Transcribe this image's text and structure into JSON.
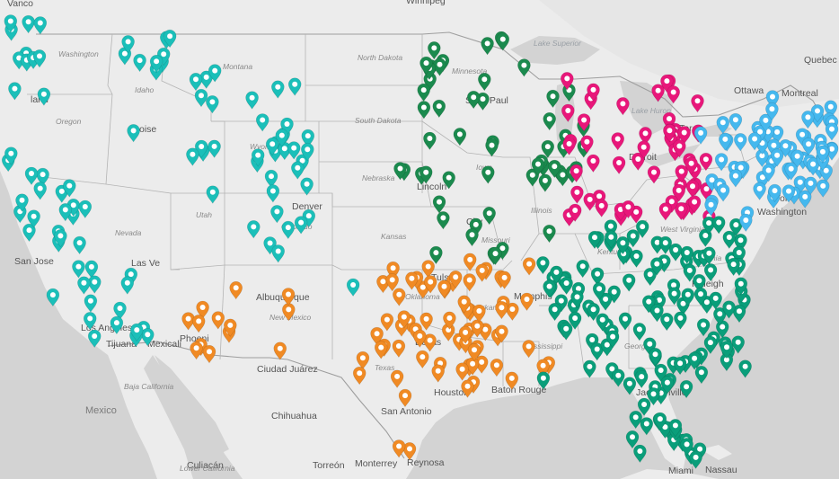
{
  "map": {
    "basemap": "light-gray",
    "colors": {
      "land": "#ececec",
      "water": "#d3d3d3",
      "lake": "#d3d3d3",
      "border": "#b4b4b4"
    },
    "labels": {
      "cities": [
        {
          "name": "Vanco",
          "key": "vancouver"
        },
        {
          "name": "Winnipeg",
          "key": "winnipeg"
        },
        {
          "name": "Quebec",
          "key": "quebec"
        },
        {
          "name": "Ottawa",
          "key": "ottawa"
        },
        {
          "name": "Montreal",
          "key": "montreal"
        },
        {
          "name": "Toro",
          "key": "toronto"
        },
        {
          "name": "Washington",
          "key": "washington"
        },
        {
          "name": "York",
          "key": "newyork"
        },
        {
          "name": "land",
          "key": "portland"
        },
        {
          "name": "Boise",
          "key": "boise"
        },
        {
          "name": "San Jose",
          "key": "sanjose"
        },
        {
          "name": "Las Ve",
          "key": "lasvegas"
        },
        {
          "name": "Los Angeles",
          "key": "losangeles"
        },
        {
          "name": "Tijuana",
          "key": "tijuana"
        },
        {
          "name": "Mexicali",
          "key": "mexicali"
        },
        {
          "name": "Phoeni",
          "key": "phoenix"
        },
        {
          "name": "Tuc",
          "key": "tucson"
        },
        {
          "name": "Albuquerque",
          "key": "albuquerque"
        },
        {
          "name": "Ciudad Juárez",
          "key": "juarez"
        },
        {
          "name": "Denver",
          "key": "denver"
        },
        {
          "name": "Saint Paul",
          "key": "saintpaul"
        },
        {
          "name": "Lincoln",
          "key": "lincoln"
        },
        {
          "name": "City",
          "key": "kansascity"
        },
        {
          "name": "Tulsa",
          "key": "tulsa"
        },
        {
          "name": "Memphis",
          "key": "memphis"
        },
        {
          "name": "Dallas",
          "key": "dallas"
        },
        {
          "name": "Houston",
          "key": "houston"
        },
        {
          "name": "San Antonio",
          "key": "sanantonio"
        },
        {
          "name": "Baton Rouge",
          "key": "batonrouge"
        },
        {
          "name": "Raleigh",
          "key": "raleigh"
        },
        {
          "name": "Jacksonville",
          "key": "jacksonville"
        },
        {
          "name": "Miami",
          "key": "miami"
        },
        {
          "name": "Nassau",
          "key": "nassau"
        },
        {
          "name": "Detroit",
          "key": "detroit"
        },
        {
          "name": "Chihuahua",
          "key": "chihuahua"
        },
        {
          "name": "Torreón",
          "key": "torreon"
        },
        {
          "name": "Monterrey",
          "key": "monterrey"
        },
        {
          "name": "Reynosa",
          "key": "reynosa"
        },
        {
          "name": "Culiacán",
          "key": "culiacan"
        }
      ],
      "states": [
        {
          "name": "Washington",
          "key": "wa"
        },
        {
          "name": "Oregon",
          "key": "or"
        },
        {
          "name": "Idaho",
          "key": "id"
        },
        {
          "name": "Montana",
          "key": "mt"
        },
        {
          "name": "Nevada",
          "key": "nv"
        },
        {
          "name": "Utah",
          "key": "ut"
        },
        {
          "name": "Wyoming",
          "key": "wy"
        },
        {
          "name": "Colorado",
          "key": "co"
        },
        {
          "name": "North Dakota",
          "key": "nd"
        },
        {
          "name": "South Dakota",
          "key": "sd"
        },
        {
          "name": "Nebraska",
          "key": "ne"
        },
        {
          "name": "Kansas",
          "key": "ks"
        },
        {
          "name": "New Mexico",
          "key": "nm"
        },
        {
          "name": "Texas",
          "key": "tx"
        },
        {
          "name": "Oklahoma",
          "key": "ok"
        },
        {
          "name": "Minnesota",
          "key": "mn"
        },
        {
          "name": "Iowa",
          "key": "ia"
        },
        {
          "name": "Missouri",
          "key": "mo"
        },
        {
          "name": "Illinois",
          "key": "il"
        },
        {
          "name": "Arkansas",
          "key": "ar"
        },
        {
          "name": "Mississippi",
          "key": "ms"
        },
        {
          "name": "Kentucky",
          "key": "ky"
        },
        {
          "name": "West Virginia",
          "key": "wv"
        },
        {
          "name": "Virginia",
          "key": "va"
        },
        {
          "name": "Georgia",
          "key": "ga"
        },
        {
          "name": "Baja California",
          "key": "bc"
        },
        {
          "name": "Lower California",
          "key": "bcs"
        }
      ],
      "countries": [
        {
          "name": "Mexico",
          "key": "mexico"
        }
      ],
      "water": [
        {
          "name": "Lake Superior",
          "key": "superior"
        },
        {
          "name": "Lake Huron",
          "key": "huron"
        }
      ]
    },
    "pin_groups": [
      {
        "name": "West",
        "color": "#1bbfb9",
        "count": 95
      },
      {
        "name": "Southwest",
        "color": "#f08a24",
        "count": 85
      },
      {
        "name": "Midwest",
        "color": "#1b8a4e",
        "count": 55
      },
      {
        "name": "Great Lakes",
        "color": "#e8177a",
        "count": 60
      },
      {
        "name": "Southeast",
        "color": "#0a9e7a",
        "count": 140
      },
      {
        "name": "Northeast",
        "color": "#45b8ee",
        "count": 75
      }
    ]
  }
}
